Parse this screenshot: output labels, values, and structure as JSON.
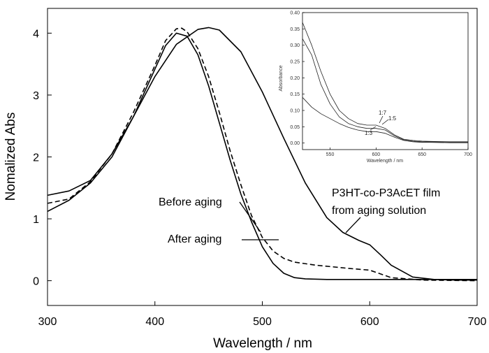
{
  "chart_data": [
    {
      "type": "line",
      "xlabel": "Wavelength / nm",
      "ylabel": "Nomalized Abs",
      "xlim": [
        300,
        700
      ],
      "ylim": [
        -0.4,
        4.4
      ],
      "xticks": [
        "300",
        "400",
        "500",
        "600",
        "700"
      ],
      "yticks": [
        "0",
        "1",
        "2",
        "3",
        "4"
      ],
      "grid": false,
      "series": [
        {
          "line_style": "solid",
          "x": [
            300,
            320,
            340,
            360,
            380,
            400,
            410,
            420,
            430,
            440,
            450,
            460,
            470,
            480,
            490,
            500,
            510,
            520,
            530,
            540,
            560,
            600,
            650,
            700
          ],
          "values": [
            1.12,
            1.3,
            1.58,
            2.0,
            2.65,
            3.42,
            3.8,
            4.0,
            3.95,
            3.65,
            3.15,
            2.55,
            1.95,
            1.4,
            0.95,
            0.55,
            0.28,
            0.12,
            0.05,
            0.03,
            0.02,
            0.02,
            0.02,
            0.02
          ]
        },
        {
          "line_style": "dashed",
          "x": [
            300,
            320,
            340,
            360,
            380,
            400,
            410,
            420,
            425,
            430,
            440,
            450,
            460,
            470,
            480,
            490,
            500,
            510,
            520,
            530,
            550,
            580,
            600,
            620,
            650,
            700
          ],
          "values": [
            1.25,
            1.32,
            1.6,
            2.05,
            2.72,
            3.48,
            3.88,
            4.07,
            4.08,
            4.02,
            3.75,
            3.3,
            2.72,
            2.1,
            1.55,
            1.05,
            0.7,
            0.48,
            0.36,
            0.3,
            0.25,
            0.2,
            0.17,
            0.05,
            0.01,
            0.0
          ]
        },
        {
          "line_style": "solid",
          "x": [
            300,
            320,
            340,
            360,
            380,
            400,
            420,
            440,
            450,
            460,
            480,
            500,
            520,
            540,
            560,
            575,
            590,
            600,
            610,
            620,
            640,
            660,
            680,
            700
          ],
          "values": [
            1.38,
            1.45,
            1.62,
            2.05,
            2.65,
            3.3,
            3.82,
            4.06,
            4.09,
            4.05,
            3.7,
            3.05,
            2.3,
            1.58,
            1.02,
            0.78,
            0.65,
            0.58,
            0.42,
            0.25,
            0.06,
            0.02,
            0.01,
            0.01
          ]
        }
      ],
      "annotations": [
        "Before aging",
        "After aging",
        "P3HT-co-P3AcET film",
        "from aging solution"
      ]
    },
    {
      "type": "line",
      "xlabel": "Wavelength / nm",
      "ylabel": "Absorbance",
      "xlim": [
        520,
        700
      ],
      "ylim": [
        -0.02,
        0.4
      ],
      "xticks": [
        "550",
        "600",
        "650",
        "700"
      ],
      "yticks": [
        "0.00",
        "0.05",
        "0.10",
        "0.15",
        "0.20",
        "0.25",
        "0.30",
        "0.35",
        "0.40"
      ],
      "grid": false,
      "series": [
        {
          "x": [
            520,
            530,
            540,
            550,
            560,
            570,
            580,
            590,
            600,
            610,
            620,
            630,
            640,
            650,
            660,
            680,
            700
          ],
          "values": [
            0.37,
            0.3,
            0.22,
            0.15,
            0.1,
            0.075,
            0.06,
            0.055,
            0.055,
            0.045,
            0.025,
            0.012,
            0.008,
            0.006,
            0.005,
            0.004,
            0.004
          ]
        },
        {
          "x": [
            520,
            530,
            540,
            550,
            560,
            570,
            580,
            590,
            600,
            610,
            620,
            630,
            640,
            650,
            660,
            680,
            700
          ],
          "values": [
            0.32,
            0.27,
            0.18,
            0.12,
            0.08,
            0.06,
            0.05,
            0.045,
            0.045,
            0.04,
            0.022,
            0.01,
            0.006,
            0.004,
            0.004,
            0.003,
            0.003
          ]
        },
        {
          "x": [
            520,
            530,
            540,
            550,
            560,
            570,
            580,
            590,
            600,
            610,
            620,
            630,
            640,
            650,
            660,
            680,
            700
          ],
          "values": [
            0.14,
            0.11,
            0.09,
            0.075,
            0.06,
            0.048,
            0.04,
            0.035,
            0.035,
            0.03,
            0.018,
            0.008,
            0.004,
            0.002,
            0.002,
            0.001,
            0.001
          ]
        }
      ],
      "annotations": [
        "1:7",
        "1:5",
        "1:3"
      ]
    }
  ]
}
